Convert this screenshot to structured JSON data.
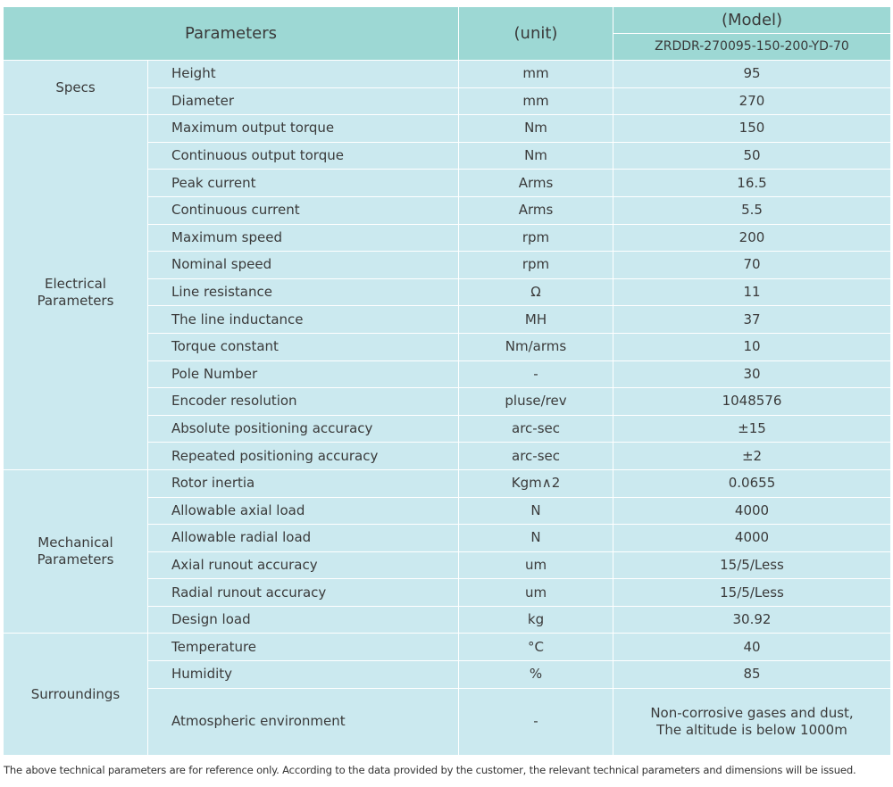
{
  "header": {
    "parameters": "Parameters",
    "unit": "(unit)",
    "model": "(Model)",
    "model_name": "ZRDDR-270095-150-200-YD-70"
  },
  "groups": [
    {
      "name": "Specs",
      "rows": [
        {
          "param": "Height",
          "unit": "mm",
          "value": "95"
        },
        {
          "param": "Diameter",
          "unit": "mm",
          "value": "270"
        }
      ]
    },
    {
      "name": "Electrical\nParameters",
      "rows": [
        {
          "param": "Maximum output torque",
          "unit": "Nm",
          "value": "150"
        },
        {
          "param": "Continuous output torque",
          "unit": "Nm",
          "value": "50"
        },
        {
          "param": "Peak current",
          "unit": "Arms",
          "value": "16.5"
        },
        {
          "param": "Continuous current",
          "unit": "Arms",
          "value": "5.5"
        },
        {
          "param": "Maximum speed",
          "unit": "rpm",
          "value": "200"
        },
        {
          "param": "Nominal speed",
          "unit": "rpm",
          "value": "70"
        },
        {
          "param": "Line resistance",
          "unit": "Ω",
          "value": "11"
        },
        {
          "param": "The line inductance",
          "unit": "MH",
          "value": "37"
        },
        {
          "param": "Torque constant",
          "unit": "Nm/arms",
          "value": "10"
        },
        {
          "param": "Pole Number",
          "unit": "-",
          "value": "30"
        },
        {
          "param": "Encoder resolution",
          "unit": "pluse/rev",
          "value": "1048576"
        },
        {
          "param": "Absolute positioning accuracy",
          "unit": "arc-sec",
          "value": "±15"
        },
        {
          "param": "Repeated positioning accuracy",
          "unit": "arc-sec",
          "value": "±2"
        }
      ]
    },
    {
      "name": "Mechanical\nParameters",
      "rows": [
        {
          "param": "Rotor inertia",
          "unit": "Kgm∧2",
          "value": "0.0655"
        },
        {
          "param": "Allowable axial load",
          "unit": "N",
          "value": "4000"
        },
        {
          "param": "Allowable radial load",
          "unit": "N",
          "value": "4000"
        },
        {
          "param": "Axial runout accuracy",
          "unit": "um",
          "value": "15/5/Less"
        },
        {
          "param": "Radial runout accuracy",
          "unit": "um",
          "value": "15/5/Less"
        },
        {
          "param": "Design load",
          "unit": "kg",
          "value": "30.92"
        }
      ]
    },
    {
      "name": "Surroundings",
      "rows": [
        {
          "param": "Temperature",
          "unit": "°C",
          "value": "40"
        },
        {
          "param": "Humidity",
          "unit": "%",
          "value": "85"
        },
        {
          "param": "Atmospheric environment",
          "unit": "-",
          "value": "Non-corrosive gases and dust,\nThe altitude is below 1000m"
        }
      ]
    }
  ],
  "footnote": "The above technical parameters are for reference only. According to the data provided by the customer, the relevant technical parameters and dimensions will be issued."
}
